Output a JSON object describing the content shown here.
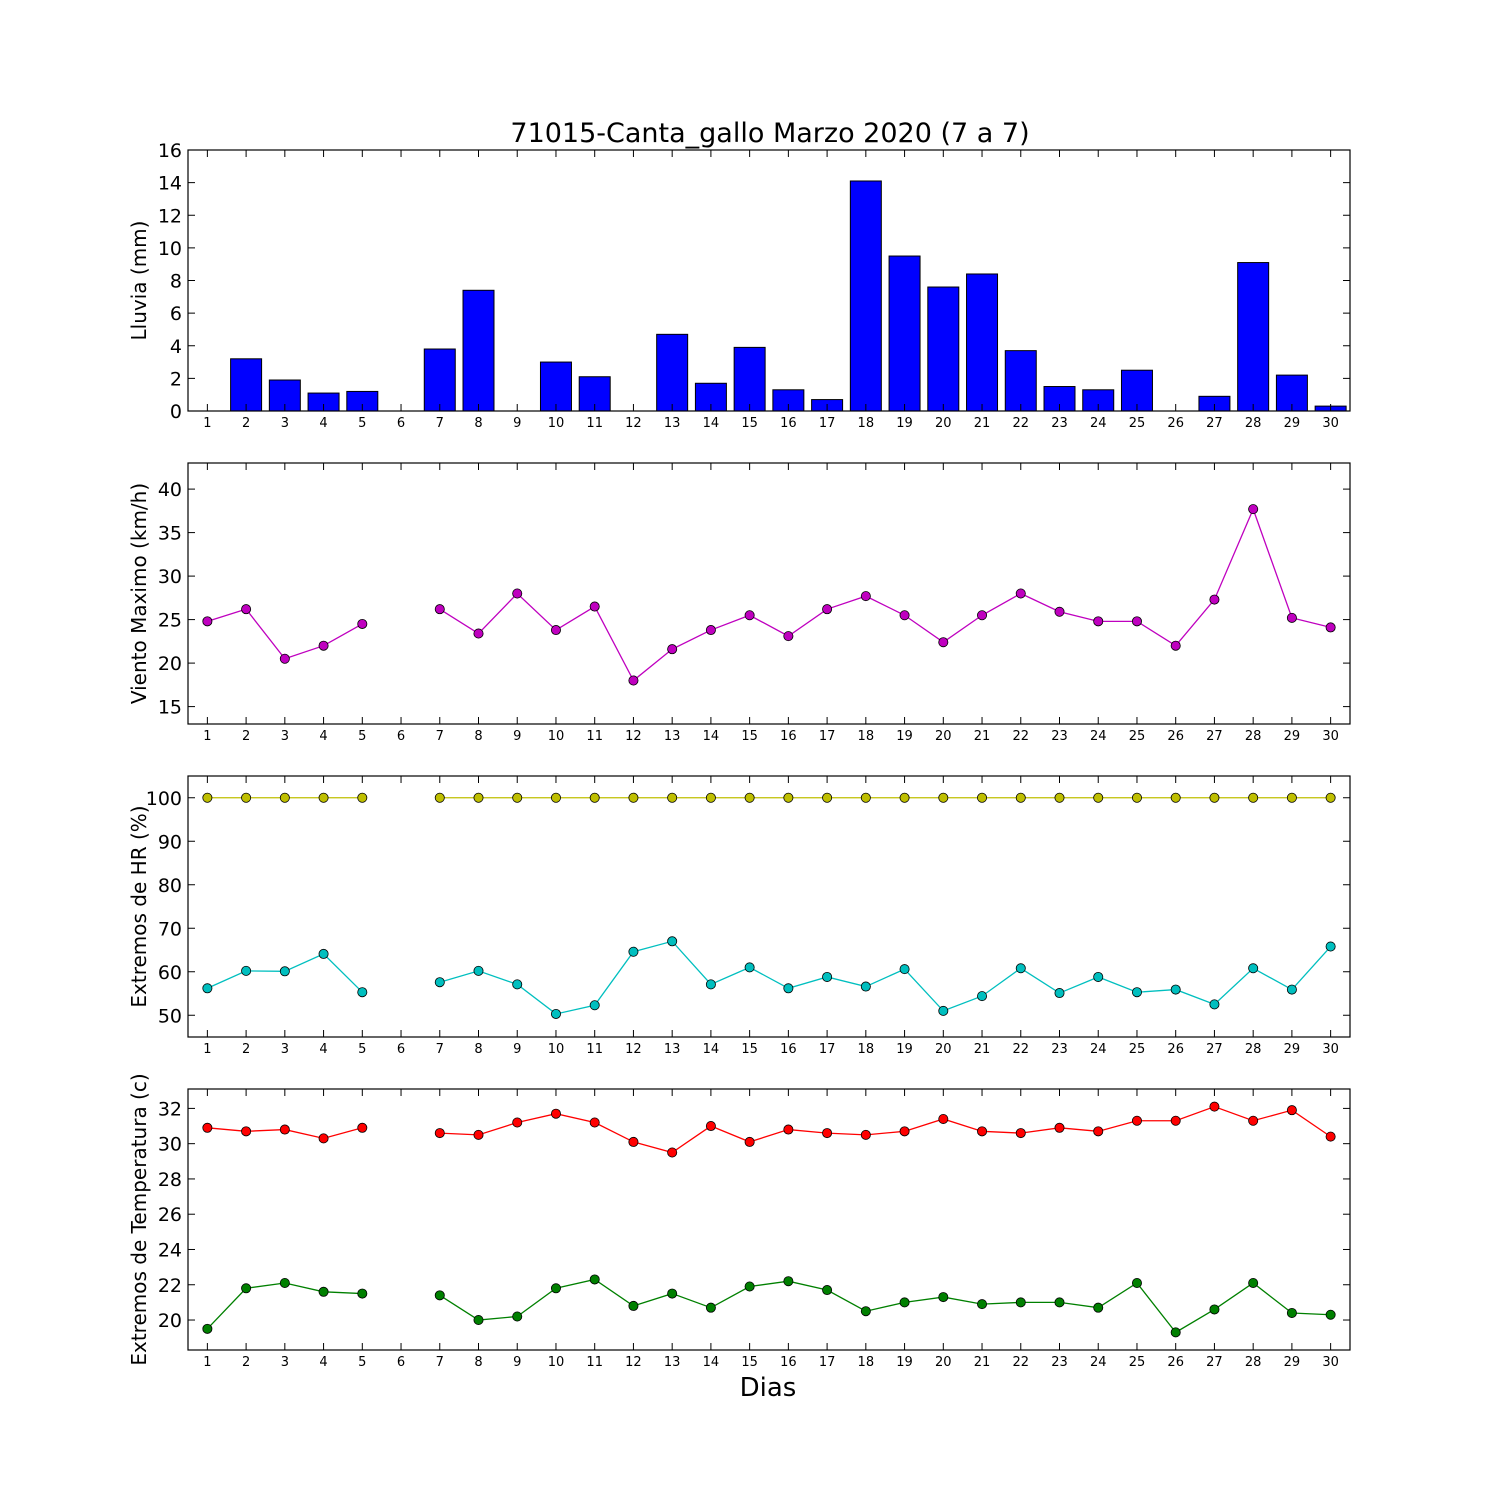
{
  "title": "71015-Canta_gallo Marzo 2020  (7 a 7)",
  "xlabel": "Dias",
  "colors": {
    "rain": "#0000ff",
    "wind": "#bf00bf",
    "hr_max": "#bfbf00",
    "hr_min": "#00bfbf",
    "t_max": "#ff0000",
    "t_min": "#008000"
  },
  "chart_data": [
    {
      "type": "bar",
      "ylabel": "Lluvia (mm)",
      "ylim": [
        0,
        16
      ],
      "yticks": [
        0,
        2,
        4,
        6,
        8,
        10,
        12,
        14,
        16
      ],
      "categories": [
        "1",
        "2",
        "3",
        "4",
        "5",
        "6",
        "7",
        "8",
        "9",
        "10",
        "11",
        "12",
        "13",
        "14",
        "15",
        "16",
        "17",
        "18",
        "19",
        "20",
        "21",
        "22",
        "23",
        "24",
        "25",
        "26",
        "27",
        "28",
        "29",
        "30"
      ],
      "series": [
        {
          "values": [
            0,
            3.2,
            1.9,
            1.1,
            1.2,
            0,
            3.8,
            7.4,
            0,
            3.0,
            2.1,
            0,
            4.7,
            1.7,
            3.9,
            1.3,
            0.7,
            14.1,
            9.5,
            7.6,
            8.4,
            3.7,
            1.5,
            1.3,
            2.5,
            0,
            0.9,
            9.1,
            2.2,
            0.3
          ],
          "color_key": "rain"
        }
      ],
      "grid": false
    },
    {
      "type": "line",
      "ylabel": "Viento Maximo (km/h)",
      "ylim": [
        13,
        43
      ],
      "yticks": [
        15,
        20,
        25,
        30,
        35,
        40
      ],
      "categories": [
        "1",
        "2",
        "3",
        "4",
        "5",
        "6",
        "7",
        "8",
        "9",
        "10",
        "11",
        "12",
        "13",
        "14",
        "15",
        "16",
        "17",
        "18",
        "19",
        "20",
        "21",
        "22",
        "23",
        "24",
        "25",
        "26",
        "27",
        "28",
        "29",
        "30"
      ],
      "series": [
        {
          "values": [
            24.8,
            26.2,
            20.5,
            22.0,
            24.5,
            null,
            26.2,
            23.4,
            28.0,
            23.8,
            26.5,
            18.0,
            21.6,
            23.8,
            25.5,
            23.1,
            26.2,
            27.7,
            25.5,
            22.4,
            25.5,
            28.0,
            25.9,
            24.8,
            24.8,
            22.0,
            27.3,
            37.7,
            25.2,
            24.1
          ],
          "color_key": "wind"
        }
      ],
      "grid": false
    },
    {
      "type": "line",
      "ylabel": "Extremos de HR (%)",
      "ylim": [
        45,
        105
      ],
      "yticks": [
        50,
        60,
        70,
        80,
        90,
        100
      ],
      "categories": [
        "1",
        "2",
        "3",
        "4",
        "5",
        "6",
        "7",
        "8",
        "9",
        "10",
        "11",
        "12",
        "13",
        "14",
        "15",
        "16",
        "17",
        "18",
        "19",
        "20",
        "21",
        "22",
        "23",
        "24",
        "25",
        "26",
        "27",
        "28",
        "29",
        "30"
      ],
      "series": [
        {
          "values": [
            100,
            100,
            100,
            100,
            100,
            null,
            100,
            100,
            100,
            100,
            100,
            100,
            100,
            100,
            100,
            100,
            100,
            100,
            100,
            100,
            100,
            100,
            100,
            100,
            100,
            100,
            100,
            100,
            100,
            100
          ],
          "color_key": "hr_max"
        },
        {
          "values": [
            56.2,
            60.2,
            60.1,
            64.1,
            55.3,
            null,
            57.6,
            60.2,
            57.1,
            50.3,
            52.3,
            64.6,
            67.0,
            57.1,
            61.0,
            56.2,
            58.8,
            56.6,
            60.6,
            51.0,
            54.4,
            60.8,
            55.1,
            58.8,
            55.3,
            55.9,
            52.5,
            60.8,
            55.9,
            65.8
          ],
          "color_key": "hr_min"
        }
      ],
      "grid": false
    },
    {
      "type": "line",
      "ylabel": "Extremos de Temperatura (c)",
      "ylim": [
        18.3,
        33.1
      ],
      "yticks": [
        20,
        22,
        24,
        26,
        28,
        30,
        32
      ],
      "categories": [
        "1",
        "2",
        "3",
        "4",
        "5",
        "6",
        "7",
        "8",
        "9",
        "10",
        "11",
        "12",
        "13",
        "14",
        "15",
        "16",
        "17",
        "18",
        "19",
        "20",
        "21",
        "22",
        "23",
        "24",
        "25",
        "26",
        "27",
        "28",
        "29",
        "30"
      ],
      "series": [
        {
          "values": [
            30.9,
            30.7,
            30.8,
            30.3,
            30.9,
            null,
            30.6,
            30.5,
            31.2,
            31.7,
            31.2,
            30.1,
            29.5,
            31.0,
            30.1,
            30.8,
            30.6,
            30.5,
            30.7,
            31.4,
            30.7,
            30.6,
            30.9,
            30.7,
            31.3,
            31.3,
            32.1,
            31.3,
            31.9,
            30.4
          ],
          "color_key": "t_max"
        },
        {
          "values": [
            19.5,
            21.8,
            22.1,
            21.6,
            21.5,
            null,
            21.4,
            20.0,
            20.2,
            21.8,
            22.3,
            20.8,
            21.5,
            20.7,
            21.9,
            22.2,
            21.7,
            20.5,
            21.0,
            21.3,
            20.9,
            21.0,
            21.0,
            20.7,
            22.1,
            19.3,
            20.6,
            22.1,
            20.4,
            20.3
          ],
          "color_key": "t_min"
        }
      ],
      "grid": false
    }
  ]
}
